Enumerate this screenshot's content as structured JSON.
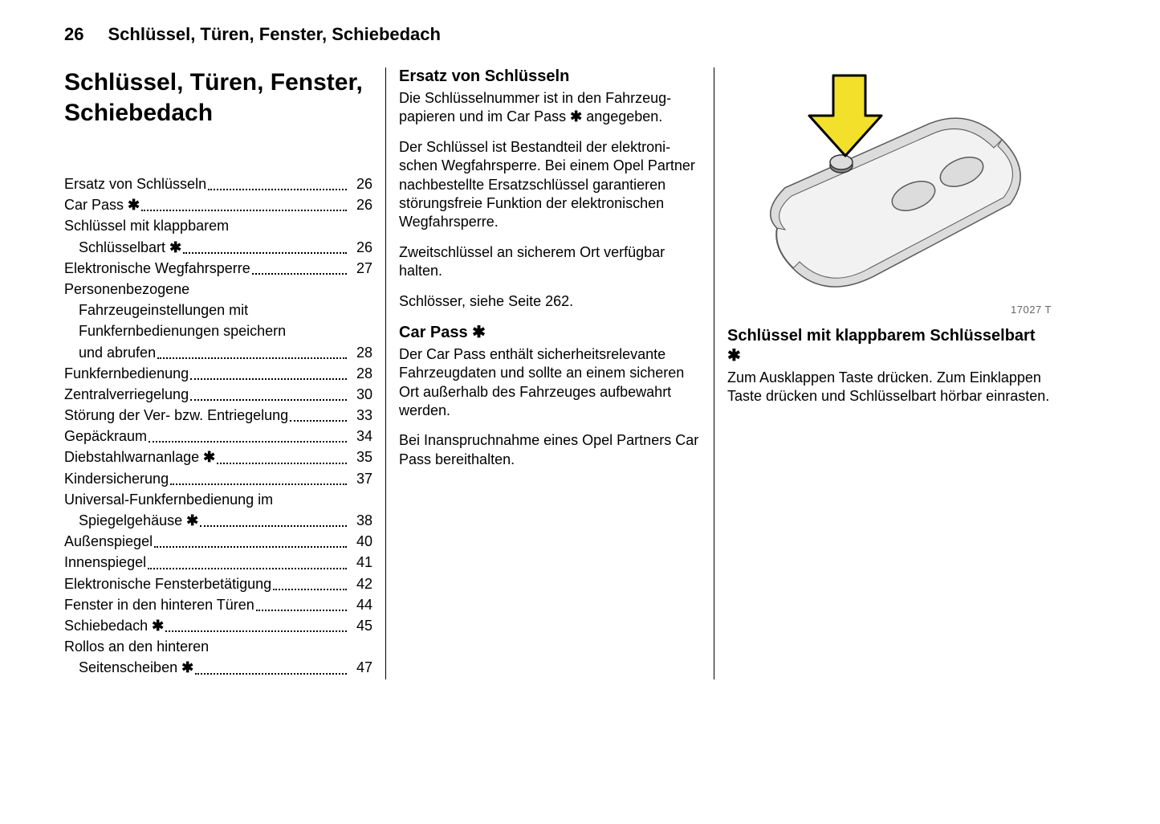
{
  "header": {
    "page_number": "26",
    "running_title": "Schlüssel, Türen, Fenster, Schiebedach"
  },
  "chapter_title": "Schlüssel, Türen, Fenster, Schiebedach",
  "star": "✱",
  "toc": [
    {
      "label": "Ersatz von Schlüsseln",
      "page": "26",
      "indent": false,
      "star": false,
      "has_page": true
    },
    {
      "label": "Car Pass",
      "page": "26",
      "indent": false,
      "star": true,
      "has_page": true
    },
    {
      "label": "Schlüssel mit klappbarem",
      "page": "",
      "indent": false,
      "star": false,
      "has_page": false
    },
    {
      "label": "Schlüsselbart",
      "page": "26",
      "indent": true,
      "star": true,
      "has_page": true
    },
    {
      "label": "Elektronische Wegfahrsperre",
      "page": "27",
      "indent": false,
      "star": false,
      "has_page": true
    },
    {
      "label": "Personenbezogene",
      "page": "",
      "indent": false,
      "star": false,
      "has_page": false
    },
    {
      "label": "Fahrzeugeinstellungen mit",
      "page": "",
      "indent": true,
      "star": false,
      "has_page": false
    },
    {
      "label": "Funkfernbedienungen speichern",
      "page": "",
      "indent": true,
      "star": false,
      "has_page": false
    },
    {
      "label": "und abrufen",
      "page": "28",
      "indent": true,
      "star": false,
      "has_page": true
    },
    {
      "label": "Funkfernbedienung",
      "page": "28",
      "indent": false,
      "star": false,
      "has_page": true
    },
    {
      "label": "Zentralverriegelung",
      "page": "30",
      "indent": false,
      "star": false,
      "has_page": true
    },
    {
      "label": "Störung der Ver- bzw. Entriegelung",
      "page": "33",
      "indent": false,
      "star": false,
      "has_page": true
    },
    {
      "label": "Gepäckraum",
      "page": "34",
      "indent": false,
      "star": false,
      "has_page": true
    },
    {
      "label": "Diebstahlwarnanlage",
      "page": "35",
      "indent": false,
      "star": true,
      "has_page": true
    },
    {
      "label": "Kindersicherung",
      "page": "37",
      "indent": false,
      "star": false,
      "has_page": true
    },
    {
      "label": "Universal-Funkfernbedienung im",
      "page": "",
      "indent": false,
      "star": false,
      "has_page": false
    },
    {
      "label": "Spiegelgehäuse",
      "page": "38",
      "indent": true,
      "star": true,
      "has_page": true
    },
    {
      "label": "Außenspiegel",
      "page": "40",
      "indent": false,
      "star": false,
      "has_page": true
    },
    {
      "label": "Innenspiegel",
      "page": "41",
      "indent": false,
      "star": false,
      "has_page": true
    },
    {
      "label": "Elektronische Fensterbetätigung",
      "page": "42",
      "indent": false,
      "star": false,
      "has_page": true
    },
    {
      "label": "Fenster in den hinteren Türen",
      "page": "44",
      "indent": false,
      "star": false,
      "has_page": true
    },
    {
      "label": "Schiebedach",
      "page": "45",
      "indent": false,
      "star": true,
      "has_page": true
    },
    {
      "label": "Rollos an den hinteren",
      "page": "",
      "indent": false,
      "star": false,
      "has_page": false
    },
    {
      "label": "Seitenscheiben",
      "page": "47",
      "indent": true,
      "star": true,
      "has_page": true
    }
  ],
  "col2": {
    "s1_heading": "Ersatz von Schlüsseln",
    "s1_p1a": "Die Schlüsselnummer ist in den Fahrzeug­papieren und im Car Pass ",
    "s1_p1b": " angegeben.",
    "s1_p2": "Der Schlüssel ist Bestandteil der elektroni­schen Wegfahrsperre. Bei einem Opel Part­ner nachbestellte Ersatzschlüssel garantie­ren störungsfreie Funktion der elektroni­schen Wegfahrsperre.",
    "s1_p3": "Zweitschlüssel an sicherem Ort verfügbar halten.",
    "s1_p4": "Schlösser, siehe Seite 262.",
    "s2_heading": "Car Pass ",
    "s2_p1": "Der Car Pass enthält sicherheitsrelevante Fahrzeugdaten und sollte an einem siche­ren Ort außerhalb des Fahrzeuges aufbe­wahrt werden.",
    "s2_p2": "Bei Inanspruchnahme eines Opel Partners Car Pass bereithalten."
  },
  "col3": {
    "image_code": "17027 T",
    "s3_heading": "Schlüssel mit klappbarem Schlüsselbart ",
    "s3_p1": "Zum Ausklappen Taste drücken. Zum Ein­klappen Taste drücken und Schlüsselbart hörbar einrasten."
  },
  "illustration": {
    "fill_body": "#f2f2f2",
    "fill_body_dark": "#dcdcdc",
    "stroke": "#5a5a5a",
    "arrow_fill": "#f2e02a",
    "arrow_stroke": "#000000",
    "button_fill": "#8a8a8a"
  }
}
